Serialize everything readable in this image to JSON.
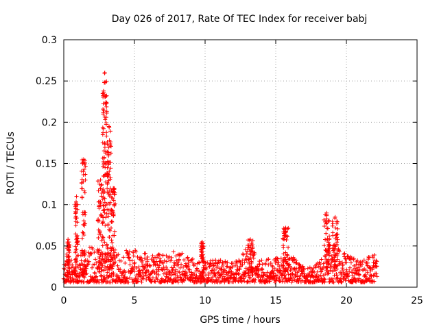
{
  "chart_data": {
    "type": "scatter",
    "title": "Day 026 of 2017, Rate Of TEC Index for receiver babj",
    "xlabel": "GPS time / hours",
    "ylabel": "ROTI / TECUs",
    "xlim": [
      0,
      25
    ],
    "ylim": [
      0,
      0.3
    ],
    "x_ticks": [
      "0",
      "5",
      "10",
      "15",
      "20",
      "25"
    ],
    "y_ticks": [
      "0",
      "0.05",
      "0.1",
      "0.15",
      "0.2",
      "0.25",
      "0.3"
    ],
    "grid": true,
    "marker": "plus",
    "color": "#ff0000",
    "x_range_of_data": [
      0,
      22.2
    ],
    "baseline_envelope": [
      {
        "x": 0.0,
        "low": 0.006,
        "high": 0.028
      },
      {
        "x": 1.0,
        "low": 0.006,
        "high": 0.045
      },
      {
        "x": 2.0,
        "low": 0.006,
        "high": 0.05
      },
      {
        "x": 3.0,
        "low": 0.006,
        "high": 0.04
      },
      {
        "x": 4.0,
        "low": 0.006,
        "high": 0.04
      },
      {
        "x": 5.0,
        "low": 0.006,
        "high": 0.05
      },
      {
        "x": 6.0,
        "low": 0.006,
        "high": 0.04
      },
      {
        "x": 7.0,
        "low": 0.006,
        "high": 0.04
      },
      {
        "x": 8.0,
        "low": 0.006,
        "high": 0.045
      },
      {
        "x": 9.0,
        "low": 0.006,
        "high": 0.035
      },
      {
        "x": 10.0,
        "low": 0.006,
        "high": 0.03
      },
      {
        "x": 11.0,
        "low": 0.006,
        "high": 0.035
      },
      {
        "x": 12.0,
        "low": 0.006,
        "high": 0.03
      },
      {
        "x": 13.0,
        "low": 0.006,
        "high": 0.05
      },
      {
        "x": 14.0,
        "low": 0.006,
        "high": 0.035
      },
      {
        "x": 15.0,
        "low": 0.006,
        "high": 0.035
      },
      {
        "x": 16.0,
        "low": 0.006,
        "high": 0.04
      },
      {
        "x": 17.0,
        "low": 0.006,
        "high": 0.025
      },
      {
        "x": 18.0,
        "low": 0.006,
        "high": 0.03
      },
      {
        "x": 19.0,
        "low": 0.006,
        "high": 0.06
      },
      {
        "x": 20.0,
        "low": 0.006,
        "high": 0.04
      },
      {
        "x": 21.0,
        "low": 0.006,
        "high": 0.035
      },
      {
        "x": 22.2,
        "low": 0.006,
        "high": 0.04
      }
    ],
    "bursts": [
      {
        "x": 0.3,
        "width": 0.1,
        "peak": 0.058
      },
      {
        "x": 0.9,
        "width": 0.1,
        "peak": 0.11
      },
      {
        "x": 1.4,
        "width": 0.15,
        "peak": 0.155
      },
      {
        "x": 2.6,
        "width": 0.2,
        "peak": 0.13
      },
      {
        "x": 2.9,
        "width": 0.15,
        "peak": 0.26
      },
      {
        "x": 3.2,
        "width": 0.15,
        "peak": 0.195
      },
      {
        "x": 3.5,
        "width": 0.15,
        "peak": 0.12
      },
      {
        "x": 9.8,
        "width": 0.1,
        "peak": 0.055
      },
      {
        "x": 13.2,
        "width": 0.2,
        "peak": 0.058
      },
      {
        "x": 15.7,
        "width": 0.2,
        "peak": 0.072
      },
      {
        "x": 18.6,
        "width": 0.2,
        "peak": 0.09
      },
      {
        "x": 19.2,
        "width": 0.2,
        "peak": 0.085
      }
    ]
  }
}
